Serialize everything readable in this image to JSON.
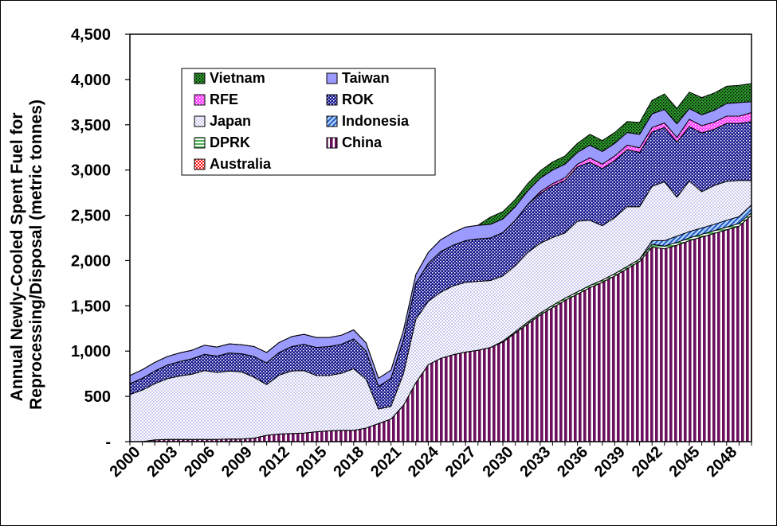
{
  "chart_data": {
    "type": "area",
    "stacked": true,
    "title": "",
    "ylabel": "Annual Newly-Cooled Spent Fuel for Reprocessing/Disposal (metric tonnes)",
    "ylabel_lines": [
      "Annual Newly-Cooled Spent Fuel for",
      "Reprocessing/Disposal (metric tonnes)"
    ],
    "xlabel": "",
    "ylim": [
      0,
      4500
    ],
    "xlim": [
      2000,
      2050
    ],
    "y_ticks": [
      0,
      500,
      1000,
      1500,
      2000,
      2500,
      3000,
      3500,
      4000,
      4500
    ],
    "y_tick_labels": [
      "-",
      "500",
      "1,000",
      "1,500",
      "2,000",
      "2,500",
      "3,000",
      "3,500",
      "4,000",
      "4,500"
    ],
    "x_tick_labels": [
      "2000",
      "2003",
      "2006",
      "2009",
      "2012",
      "2015",
      "2018",
      "2021",
      "2024",
      "2027",
      "2030",
      "2033",
      "2036",
      "2039",
      "2042",
      "2045",
      "2048"
    ],
    "grid": false,
    "legend_position": "top-left",
    "legend": [
      {
        "name": "Vietnam",
        "color": "#2e9e2e",
        "pattern": "dots-green"
      },
      {
        "name": "Taiwan",
        "color": "#9b9bff",
        "pattern": "solid"
      },
      {
        "name": "RFE",
        "color": "#ff33ff",
        "pattern": "dots-pink"
      },
      {
        "name": "ROK",
        "color": "#14148c",
        "pattern": "dots-navy"
      },
      {
        "name": "Japan",
        "color": "#dcdcff",
        "pattern": "checker"
      },
      {
        "name": "Indonesia",
        "color": "#3a78d8",
        "pattern": "diag"
      },
      {
        "name": "DPRK",
        "color": "#4caf50",
        "pattern": "hlines"
      },
      {
        "name": "China",
        "color": "#6b0f5e",
        "pattern": "vstripes"
      },
      {
        "name": "Australia",
        "color": "#ff0000",
        "pattern": "checker-red"
      }
    ],
    "x": [
      2000,
      2001,
      2002,
      2003,
      2004,
      2005,
      2006,
      2007,
      2008,
      2009,
      2010,
      2011,
      2012,
      2013,
      2014,
      2015,
      2016,
      2017,
      2018,
      2019,
      2020,
      2021,
      2022,
      2023,
      2024,
      2025,
      2026,
      2027,
      2028,
      2029,
      2030,
      2031,
      2032,
      2033,
      2034,
      2035,
      2036,
      2037,
      2038,
      2039,
      2040,
      2041,
      2042,
      2043,
      2044,
      2045,
      2046,
      2047,
      2048,
      2049,
      2050
    ],
    "series": [
      {
        "name": "China",
        "values": [
          0,
          0,
          20,
          25,
          25,
          25,
          25,
          25,
          30,
          30,
          40,
          70,
          85,
          90,
          95,
          110,
          120,
          125,
          125,
          150,
          200,
          250,
          400,
          650,
          850,
          920,
          960,
          990,
          1010,
          1040,
          1100,
          1200,
          1300,
          1400,
          1480,
          1560,
          1630,
          1700,
          1760,
          1830,
          1910,
          1990,
          2150,
          2130,
          2170,
          2220,
          2260,
          2300,
          2340,
          2380,
          2500
        ]
      },
      {
        "name": "Australia",
        "values": [
          0,
          0,
          0,
          0,
          0,
          0,
          0,
          0,
          0,
          0,
          0,
          0,
          0,
          0,
          0,
          0,
          0,
          0,
          0,
          0,
          0,
          0,
          0,
          0,
          0,
          0,
          0,
          0,
          0,
          0,
          0,
          0,
          0,
          0,
          0,
          0,
          0,
          0,
          0,
          0,
          0,
          0,
          0,
          0,
          0,
          0,
          0,
          0,
          0,
          0,
          0
        ]
      },
      {
        "name": "DPRK",
        "values": [
          0,
          0,
          0,
          0,
          0,
          0,
          0,
          0,
          0,
          0,
          0,
          0,
          0,
          0,
          0,
          0,
          0,
          0,
          0,
          0,
          0,
          0,
          0,
          0,
          0,
          0,
          0,
          0,
          0,
          0,
          10,
          15,
          20,
          20,
          25,
          25,
          25,
          25,
          25,
          25,
          25,
          25,
          30,
          30,
          30,
          30,
          30,
          30,
          30,
          30,
          30
        ]
      },
      {
        "name": "Indonesia",
        "values": [
          0,
          0,
          0,
          0,
          0,
          0,
          0,
          0,
          0,
          0,
          0,
          0,
          0,
          0,
          0,
          0,
          0,
          0,
          0,
          0,
          0,
          0,
          0,
          0,
          0,
          0,
          0,
          0,
          0,
          0,
          0,
          0,
          0,
          0,
          0,
          0,
          0,
          0,
          0,
          0,
          0,
          0,
          40,
          60,
          70,
          70,
          70,
          70,
          75,
          75,
          85
        ]
      },
      {
        "name": "Japan",
        "values": [
          520,
          570,
          620,
          670,
          700,
          720,
          760,
          740,
          750,
          740,
          670,
          560,
          650,
          690,
          690,
          620,
          610,
          630,
          680,
          540,
          160,
          140,
          350,
          700,
          700,
          730,
          760,
          770,
          760,
          740,
          720,
          730,
          770,
          770,
          750,
          720,
          780,
          720,
          600,
          620,
          660,
          580,
          600,
          650,
          430,
          560,
          400,
          430,
          430,
          400,
          270
        ]
      },
      {
        "name": "ROK",
        "values": [
          120,
          130,
          140,
          150,
          160,
          170,
          180,
          180,
          200,
          200,
          230,
          240,
          250,
          270,
          290,
          310,
          320,
          320,
          330,
          310,
          250,
          310,
          380,
          400,
          420,
          450,
          450,
          460,
          470,
          470,
          480,
          500,
          530,
          550,
          570,
          580,
          600,
          640,
          630,
          630,
          630,
          600,
          600,
          600,
          610,
          600,
          650,
          620,
          640,
          630,
          650
        ]
      },
      {
        "name": "RFE",
        "values": [
          0,
          0,
          0,
          0,
          0,
          0,
          0,
          0,
          0,
          0,
          0,
          0,
          0,
          0,
          0,
          0,
          0,
          0,
          0,
          0,
          0,
          0,
          0,
          0,
          0,
          0,
          0,
          0,
          0,
          0,
          0,
          0,
          0,
          20,
          25,
          30,
          30,
          50,
          50,
          50,
          50,
          50,
          50,
          50,
          50,
          80,
          80,
          80,
          80,
          80,
          100
        ]
      },
      {
        "name": "Taiwan",
        "values": [
          90,
          95,
          95,
          95,
          95,
          95,
          100,
          100,
          100,
          100,
          110,
          115,
          110,
          110,
          110,
          110,
          100,
          100,
          100,
          90,
          90,
          90,
          95,
          95,
          120,
          130,
          140,
          150,
          150,
          150,
          150,
          150,
          150,
          150,
          150,
          150,
          130,
          140,
          140,
          140,
          140,
          150,
          150,
          150,
          150,
          120,
          120,
          130,
          140,
          150,
          120
        ]
      },
      {
        "name": "Vietnam",
        "values": [
          0,
          0,
          0,
          0,
          0,
          0,
          0,
          0,
          0,
          0,
          0,
          0,
          0,
          0,
          0,
          0,
          0,
          0,
          0,
          0,
          0,
          0,
          0,
          0,
          0,
          0,
          0,
          0,
          0,
          80,
          80,
          80,
          80,
          80,
          90,
          90,
          100,
          120,
          120,
          120,
          120,
          130,
          150,
          170,
          170,
          180,
          190,
          190,
          190,
          190,
          200
        ]
      }
    ]
  }
}
